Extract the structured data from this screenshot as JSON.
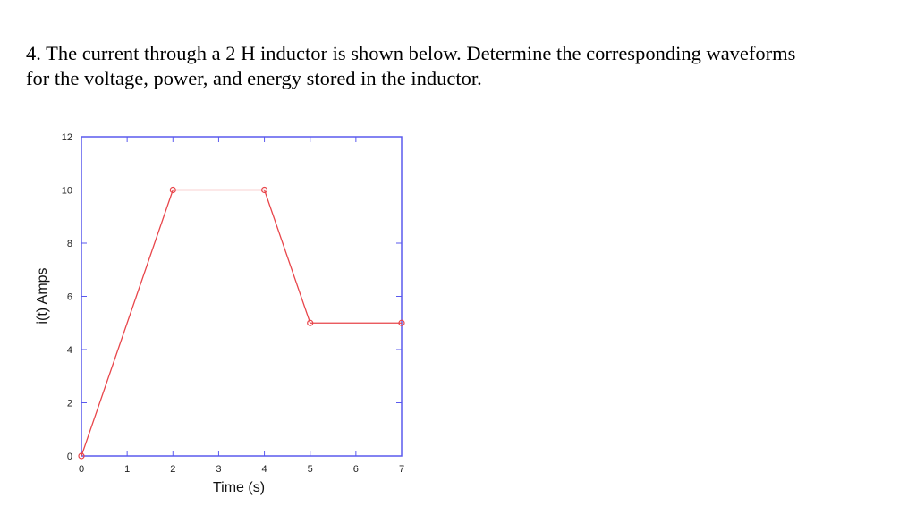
{
  "question": {
    "line1": "4. The current through a 2 H inductor is shown below.  Determine the corresponding waveforms",
    "line2": "for the voltage, power, and energy stored in the inductor."
  },
  "colors": {
    "axis": "#5a5aee",
    "series": "#e8454a",
    "text": "#000000"
  },
  "chart_data": {
    "type": "line",
    "title": "",
    "xlabel": "Time (s)",
    "ylabel": "i(t) Amps",
    "xlim": [
      0,
      7
    ],
    "ylim": [
      0,
      12
    ],
    "xticks": [
      "0",
      "1",
      "2",
      "3",
      "4",
      "5",
      "6",
      "7"
    ],
    "yticks": [
      "0",
      "2",
      "4",
      "6",
      "8",
      "10",
      "12"
    ],
    "grid": false,
    "legend": null,
    "series": [
      {
        "name": "i(t)",
        "x": [
          0,
          2,
          4,
          5,
          7
        ],
        "y": [
          0,
          10,
          10,
          5,
          5
        ],
        "marker": "open-circle"
      }
    ]
  }
}
